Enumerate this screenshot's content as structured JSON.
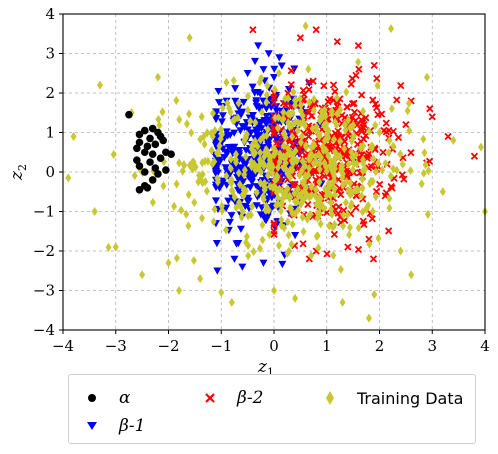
{
  "chart_data": {
    "type": "scatter",
    "title": "",
    "xlabel": "z",
    "xlabel_subscript": "1",
    "ylabel": "z",
    "ylabel_subscript": "2",
    "xlim": [
      -4,
      4
    ],
    "ylim": [
      -4,
      4
    ],
    "xticks": [
      "−4",
      "−3",
      "−2",
      "−1",
      "0",
      "1",
      "2",
      "3",
      "4"
    ],
    "yticks": [
      "−4",
      "−3",
      "−2",
      "−1",
      "0",
      "1",
      "2",
      "3",
      "4"
    ],
    "grid": true,
    "legend_placement": "below",
    "series": [
      {
        "name": "α",
        "marker": "circle",
        "color": "#000000",
        "points": [
          [
            -2.75,
            1.45
          ],
          [
            -2.55,
            0.95
          ],
          [
            -2.45,
            1.05
          ],
          [
            -2.3,
            1.1
          ],
          [
            -2.2,
            1.0
          ],
          [
            -2.15,
            0.9
          ],
          [
            -2.35,
            0.85
          ],
          [
            -2.55,
            0.75
          ],
          [
            -2.6,
            0.6
          ],
          [
            -2.4,
            0.65
          ],
          [
            -2.25,
            0.7
          ],
          [
            -2.45,
            0.5
          ],
          [
            -2.3,
            0.45
          ],
          [
            -2.05,
            0.5
          ],
          [
            -1.95,
            0.45
          ],
          [
            -2.15,
            0.35
          ],
          [
            -2.35,
            0.25
          ],
          [
            -2.55,
            0.15
          ],
          [
            -2.25,
            0.1
          ],
          [
            -2.05,
            0.05
          ],
          [
            -2.45,
            0.0
          ],
          [
            -2.2,
            -0.05
          ],
          [
            -2.3,
            -0.2
          ],
          [
            -2.45,
            -0.35
          ],
          [
            -2.55,
            -0.45
          ],
          [
            -2.4,
            -0.4
          ],
          [
            -2.6,
            0.3
          ],
          [
            -2.1,
            0.8
          ]
        ]
      },
      {
        "name": "β-1",
        "marker": "triangle-down",
        "color": "#0000ff",
        "cluster": {
          "center": [
            -0.3,
            0.4
          ],
          "spread": [
            0.5,
            0.95
          ],
          "count": 430
        },
        "points": [
          [
            -0.3,
            3.2
          ],
          [
            -0.1,
            3.0
          ],
          [
            0.1,
            2.9
          ],
          [
            -0.5,
            2.5
          ],
          [
            -0.2,
            2.6
          ],
          [
            -0.6,
            -2.4
          ],
          [
            -0.2,
            -2.3
          ],
          [
            0.2,
            -2.1
          ],
          [
            -0.9,
            1.8
          ],
          [
            0.4,
            -1.6
          ],
          [
            -0.75,
            -2.2
          ],
          [
            0.0,
            2.4
          ]
        ]
      },
      {
        "name": "β-2",
        "marker": "x",
        "color": "#ff0000",
        "cluster": {
          "center": [
            1.0,
            0.4
          ],
          "spread": [
            0.65,
            0.9
          ],
          "count": 420
        },
        "points": [
          [
            0.8,
            3.6
          ],
          [
            1.2,
            3.3
          ],
          [
            1.6,
            3.2
          ],
          [
            0.5,
            3.4
          ],
          [
            2.6,
            1.8
          ],
          [
            3.0,
            1.4
          ],
          [
            3.8,
            0.4
          ],
          [
            3.3,
            0.9
          ],
          [
            1.8,
            -1.7
          ],
          [
            1.4,
            -1.9
          ],
          [
            0.8,
            -2.0
          ],
          [
            2.5,
            1.2
          ],
          [
            -0.4,
            3.6
          ],
          [
            1.9,
            2.7
          ]
        ]
      },
      {
        "name": "Training Data",
        "marker": "diamond",
        "color": "#c8c832",
        "cluster": {
          "center": [
            0.4,
            0.2
          ],
          "spread": [
            1.1,
            1.0
          ],
          "count": 520
        },
        "points": [
          [
            -3.8,
            0.9
          ],
          [
            -3.9,
            -0.15
          ],
          [
            -3.4,
            -1.0
          ],
          [
            -3.3,
            2.2
          ],
          [
            -3.0,
            -1.9
          ],
          [
            -2.7,
            1.5
          ],
          [
            -1.6,
            3.4
          ],
          [
            -2.2,
            2.4
          ],
          [
            -2.5,
            -2.6
          ],
          [
            -2.0,
            -2.3
          ],
          [
            -1.4,
            -2.7
          ],
          [
            -1.8,
            -3.0
          ],
          [
            0.6,
            3.7
          ],
          [
            0.4,
            -3.2
          ],
          [
            1.3,
            -3.3
          ],
          [
            1.9,
            -3.1
          ],
          [
            2.4,
            -2.0
          ],
          [
            2.6,
            -2.6
          ],
          [
            4.0,
            -1.0
          ],
          [
            3.2,
            -0.5
          ],
          [
            2.9,
            2.4
          ],
          [
            1.8,
            -3.7
          ],
          [
            -0.8,
            -3.3
          ],
          [
            0.0,
            -3.0
          ],
          [
            2.0,
            1.0
          ],
          [
            3.4,
            0.8
          ],
          [
            2.8,
            -0.3
          ],
          [
            -2.6,
            0.3
          ],
          [
            -1.0,
            -3.05
          ]
        ]
      }
    ]
  }
}
